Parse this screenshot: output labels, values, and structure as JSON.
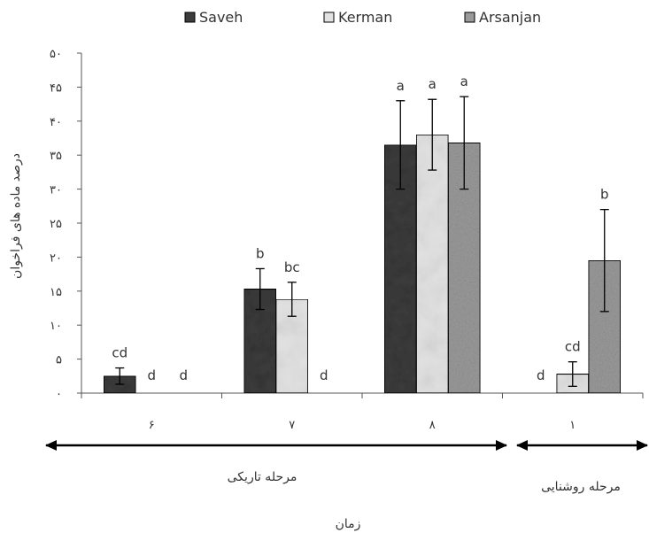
{
  "chart_data": {
    "type": "bar",
    "title": "",
    "xlabel": "زمان",
    "ylabel": "درصد ماده های فراخوان",
    "ylim": [
      0,
      50
    ],
    "y_ticks": [
      "۰",
      "۵",
      "۱۰",
      "۱۵",
      "۲۰",
      "۲۵",
      "۳۰",
      "۳۵",
      "۴۰",
      "۴۵",
      "۵۰"
    ],
    "categories": [
      "۶",
      "۷",
      "۸",
      "۱"
    ],
    "series": [
      {
        "name": "Saveh",
        "values": [
          2.5,
          15.3,
          36.5,
          0
        ],
        "errors": [
          1.2,
          3.0,
          6.5,
          0
        ],
        "letters": [
          "cd",
          "b",
          "a",
          "d"
        ]
      },
      {
        "name": "Kerman",
        "values": [
          0,
          13.8,
          38.0,
          2.8
        ],
        "errors": [
          0,
          2.5,
          5.2,
          1.8
        ],
        "letters": [
          "d",
          "bc",
          "a",
          "cd"
        ]
      },
      {
        "name": "Arsanjan",
        "values": [
          0,
          0,
          36.8,
          19.5
        ],
        "errors": [
          0,
          0,
          6.8,
          7.5
        ],
        "letters": [
          "d",
          "d",
          "a",
          "b"
        ]
      }
    ],
    "colors": [
      "#3c3c3c",
      "#e2e2e2",
      "#9a9a9a"
    ],
    "legend_position": "top",
    "grid": false,
    "phases": [
      {
        "label": "مرحله تاریکی",
        "categories": [
          "۶",
          "۷",
          "۸"
        ]
      },
      {
        "label": "مرحله روشنایی",
        "categories": [
          "۱"
        ]
      }
    ]
  }
}
